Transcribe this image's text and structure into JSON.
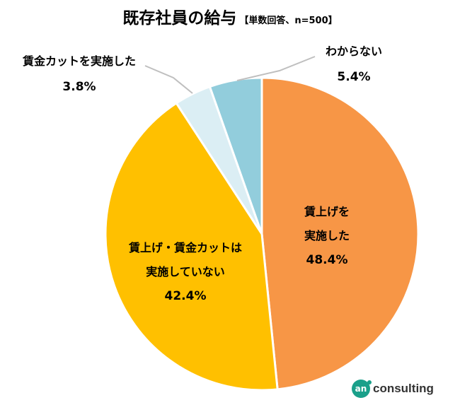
{
  "title": "既存社員の給与",
  "subtitle": "【単数回答、n=500】",
  "brand": {
    "logo_mark": "an",
    "logo_text": "consulting"
  },
  "chart_data": {
    "type": "pie",
    "categories": [
      "賃上げを実施した",
      "賃上げ・賃金カットは実施していない",
      "賃金カットを実施した",
      "わからない"
    ],
    "values": [
      48.4,
      42.4,
      3.8,
      5.4
    ],
    "unit": "%",
    "slices": [
      {
        "label_lines": [
          "賃上げを",
          "実施した"
        ],
        "value_text": "48.4%",
        "color": "#f79646"
      },
      {
        "label_lines": [
          "賃上げ・賃金カットは",
          "実施していない"
        ],
        "value_text": "42.4%",
        "color": "#ffc000"
      },
      {
        "label_lines": [
          "賃金カットを実施した"
        ],
        "value_text": "3.8%",
        "color": "#dbeef4"
      },
      {
        "label_lines": [
          "わからない"
        ],
        "value_text": "5.4%",
        "color": "#92cddc"
      }
    ],
    "start": "12 o'clock",
    "direction": "clockwise",
    "legend": "none"
  }
}
